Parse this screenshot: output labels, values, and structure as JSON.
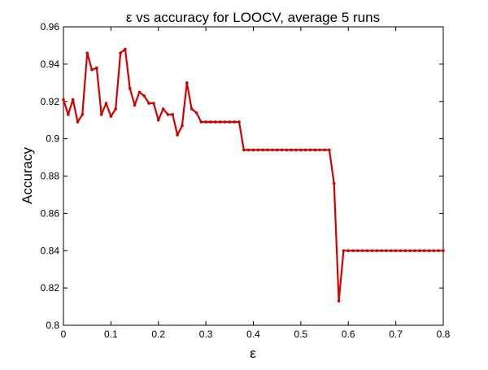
{
  "chart_data": {
    "type": "line",
    "title": "ε vs accuracy for LOOCV, average 5 runs",
    "xlabel": "ε",
    "ylabel": "Accuracy",
    "xlim": [
      0,
      0.8
    ],
    "ylim": [
      0.8,
      0.96
    ],
    "x_ticks": [
      0,
      0.1,
      0.2,
      0.3,
      0.4,
      0.5,
      0.6,
      0.7,
      0.8
    ],
    "x_tick_labels": [
      "0",
      "0.1",
      "0.2",
      "0.3",
      "0.4",
      "0.5",
      "0.6",
      "0.7",
      "0.8"
    ],
    "y_ticks": [
      0.8,
      0.82,
      0.84,
      0.86,
      0.88,
      0.9,
      0.92,
      0.94,
      0.96
    ],
    "y_tick_labels": [
      "0.8",
      "0.82",
      "0.84",
      "0.86",
      "0.88",
      "0.9",
      "0.92",
      "0.94",
      "0.96"
    ],
    "grid": false,
    "series": [
      {
        "color": "#d40000",
        "x": [
          0,
          0.01,
          0.02,
          0.03,
          0.04,
          0.05,
          0.06,
          0.07,
          0.08,
          0.09,
          0.1,
          0.11,
          0.12,
          0.13,
          0.14,
          0.15,
          0.16,
          0.17,
          0.18,
          0.19,
          0.2,
          0.21,
          0.22,
          0.23,
          0.24,
          0.25,
          0.26,
          0.27,
          0.28,
          0.29,
          0.3,
          0.31,
          0.32,
          0.33,
          0.34,
          0.35,
          0.36,
          0.37,
          0.38,
          0.39,
          0.4,
          0.41,
          0.42,
          0.43,
          0.44,
          0.45,
          0.46,
          0.47,
          0.48,
          0.49,
          0.5,
          0.51,
          0.52,
          0.53,
          0.54,
          0.55,
          0.56,
          0.57,
          0.58,
          0.59,
          0.6,
          0.61,
          0.62,
          0.63,
          0.64,
          0.65,
          0.66,
          0.67,
          0.68,
          0.69,
          0.7,
          0.71,
          0.72,
          0.73,
          0.74,
          0.75,
          0.76,
          0.77,
          0.78,
          0.79,
          0.8
        ],
        "y": [
          0.921,
          0.913,
          0.921,
          0.909,
          0.913,
          0.946,
          0.937,
          0.938,
          0.913,
          0.919,
          0.912,
          0.916,
          0.946,
          0.948,
          0.927,
          0.918,
          0.925,
          0.923,
          0.919,
          0.919,
          0.91,
          0.916,
          0.913,
          0.913,
          0.902,
          0.907,
          0.93,
          0.916,
          0.914,
          0.909,
          0.909,
          0.909,
          0.909,
          0.909,
          0.909,
          0.909,
          0.909,
          0.909,
          0.894,
          0.894,
          0.894,
          0.894,
          0.894,
          0.894,
          0.894,
          0.894,
          0.894,
          0.894,
          0.894,
          0.894,
          0.894,
          0.894,
          0.894,
          0.894,
          0.894,
          0.894,
          0.894,
          0.876,
          0.813,
          0.84,
          0.84,
          0.84,
          0.84,
          0.84,
          0.84,
          0.84,
          0.84,
          0.84,
          0.84,
          0.84,
          0.84,
          0.84,
          0.84,
          0.84,
          0.84,
          0.84,
          0.84,
          0.84,
          0.84,
          0.84,
          0.84
        ]
      }
    ]
  }
}
